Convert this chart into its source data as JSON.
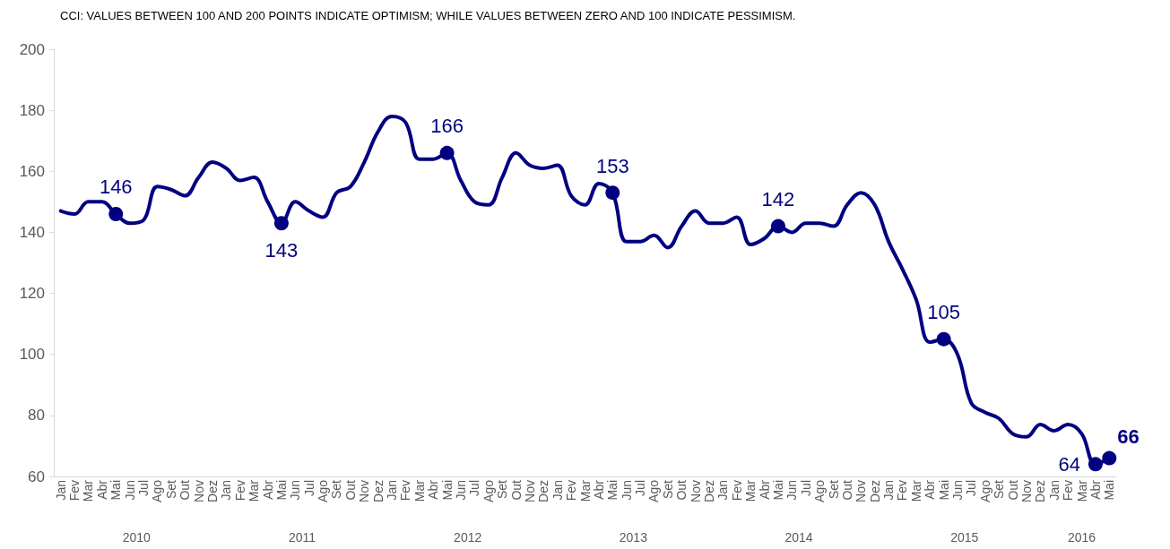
{
  "chart_data": {
    "type": "line",
    "title": "CCI: VALUES BETWEEN 100 AND 200 POINTS INDICATE OPTIMISM; WHILE VALUES BETWEEN ZERO AND 100 INDICATE PESSIMISM.",
    "categories": [
      "Jan",
      "Fev",
      "Mar",
      "Abr",
      "Mai",
      "Jun",
      "Jul",
      "Ago",
      "Set",
      "Out",
      "Nov",
      "Dez",
      "Jan",
      "Fev",
      "Mar",
      "Abr",
      "Mai",
      "Jun",
      "Jul",
      "Ago",
      "Set",
      "Out",
      "Nov",
      "Dez",
      "Jan",
      "Fev",
      "Mar",
      "Abr",
      "Mai",
      "Jun",
      "Jul",
      "Ago",
      "Set",
      "Out",
      "Nov",
      "Dez",
      "Jan",
      "Fev",
      "Mar",
      "Abr",
      "Mai",
      "Jun",
      "Jul",
      "Ago",
      "Set",
      "Out",
      "Nov",
      "Dez",
      "Jan",
      "Fev",
      "Mar",
      "Abr",
      "Mai",
      "Jun",
      "Jul",
      "Ago",
      "Set",
      "Out",
      "Nov",
      "Dez",
      "Jan",
      "Fev",
      "Mar",
      "Abr",
      "Mai",
      "Jun",
      "Jul",
      "Ago",
      "Set",
      "Out",
      "Nov",
      "Dez",
      "Jan",
      "Fev",
      "Mar",
      "Abr",
      "Mai"
    ],
    "series": [
      {
        "color": "#000080",
        "values": [
          147,
          146,
          150,
          150,
          146,
          143,
          144,
          155,
          154,
          152,
          158,
          163,
          161,
          157,
          158,
          150,
          143,
          150,
          147,
          145,
          153,
          155,
          163,
          173,
          178,
          176,
          164,
          164,
          166,
          157,
          150,
          149,
          158,
          166,
          162,
          161,
          162,
          152,
          149,
          156,
          153,
          137,
          137,
          139,
          135,
          142,
          147,
          143,
          143,
          145,
          136,
          138,
          142,
          140,
          143,
          143,
          142,
          149,
          153,
          149,
          137,
          128,
          118,
          104,
          105,
          100,
          84,
          81,
          79,
          74,
          73,
          77,
          75,
          77,
          74,
          64,
          66
        ],
        "value_labels": [
          null,
          null,
          null,
          null,
          "146",
          null,
          null,
          null,
          null,
          null,
          null,
          null,
          null,
          null,
          null,
          null,
          "143",
          null,
          null,
          null,
          null,
          null,
          null,
          null,
          null,
          null,
          null,
          null,
          "166",
          null,
          null,
          null,
          null,
          null,
          null,
          null,
          null,
          null,
          null,
          null,
          "153",
          null,
          null,
          null,
          null,
          null,
          null,
          null,
          null,
          null,
          null,
          null,
          "142",
          null,
          null,
          null,
          null,
          null,
          null,
          null,
          null,
          null,
          null,
          null,
          "105",
          null,
          null,
          null,
          null,
          null,
          null,
          null,
          null,
          null,
          null,
          "64",
          "66"
        ]
      }
    ],
    "annotations": [
      "2010",
      "2011",
      "2012",
      "2013",
      "2014",
      "2015",
      "2016"
    ],
    "ylim": [
      60,
      200
    ],
    "yticks": [
      60,
      80,
      100,
      120,
      140,
      160,
      180,
      200
    ],
    "line_style": "solid",
    "grid": false
  }
}
